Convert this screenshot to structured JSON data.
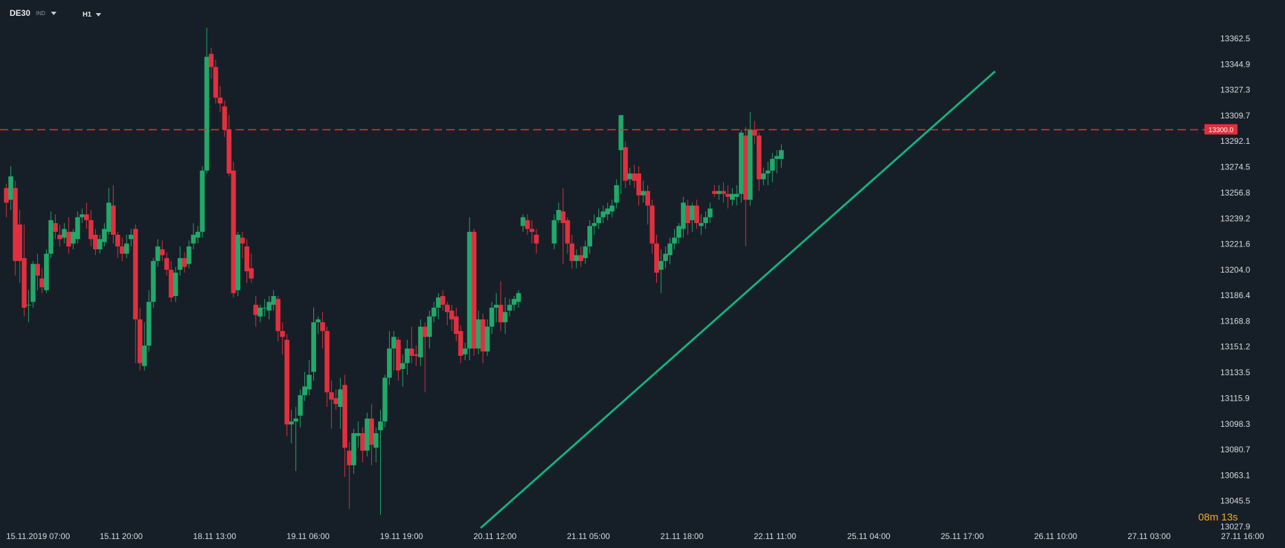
{
  "header": {
    "symbol": "DE30",
    "symbol_tag": "IND",
    "timeframe": "H1"
  },
  "countdown": {
    "minutes": "08",
    "minutes_unit": "m",
    "seconds": "13",
    "seconds_unit": "s"
  },
  "colors": {
    "background": "#161f27",
    "bull": "#22a86a",
    "bear": "#e0303f",
    "trendline": "#13b27e",
    "price_line": "#e0303f",
    "axis_text": "#d5dbe1"
  },
  "chart_data": {
    "type": "candlestick",
    "title": "",
    "xlabel": "",
    "ylabel": "",
    "ylim": [
      13023,
      13380
    ],
    "y_ticks": [
      "13362.5",
      "13344.9",
      "13327.3",
      "13309.7",
      "13292.1",
      "13274.5",
      "13256.8",
      "13239.2",
      "13221.6",
      "13204.0",
      "13186.4",
      "13168.8",
      "13151.2",
      "13133.5",
      "13115.9",
      "13098.3",
      "13080.7",
      "13063.1",
      "13045.5",
      "13027.9"
    ],
    "x_ticks": [
      "15.11.2019  07:00",
      "15.11  20:00",
      "18.11  13:00",
      "19.11  06:00",
      "19.11  19:00",
      "20.11  12:00",
      "21.11  05:00",
      "21.11  18:00",
      "22.11  11:00",
      "25.11  04:00",
      "25.11  17:00",
      "26.11  10:00",
      "27.11  03:00",
      "27.11  16:00"
    ],
    "price_line": {
      "value": "13300.0",
      "level": 13300.0
    },
    "trendline": {
      "from": {
        "bar": 106.5,
        "price": 13027.0
      },
      "to": {
        "bar": 222,
        "price": 13340.0
      }
    },
    "bar_spacing_index_count": 231,
    "candles": [
      [
        13260,
        13250,
        13263,
        13240
      ],
      [
        13252,
        13268,
        13275,
        13245
      ],
      [
        13260,
        13210,
        13265,
        13200
      ],
      [
        13235,
        13210,
        13245,
        13195
      ],
      [
        13212,
        13178,
        13235,
        13172
      ],
      [
        13180,
        13180,
        13190,
        13168
      ],
      [
        13182,
        13208,
        13210,
        13178
      ],
      [
        13208,
        13200,
        13215,
        13190
      ],
      [
        13198,
        13192,
        13205,
        13188
      ],
      [
        13190,
        13215,
        13218,
        13188
      ],
      [
        13215,
        13238,
        13244,
        13212
      ],
      [
        13236,
        13230,
        13242,
        13225
      ],
      [
        13228,
        13225,
        13235,
        13220
      ],
      [
        13226,
        13232,
        13236,
        13222
      ],
      [
        13230,
        13220,
        13240,
        13215
      ],
      [
        13222,
        13230,
        13232,
        13218
      ],
      [
        13225,
        13240,
        13244,
        13222
      ],
      [
        13240,
        13242,
        13246,
        13236
      ],
      [
        13242,
        13238,
        13250,
        13232
      ],
      [
        13238,
        13225,
        13245,
        13220
      ],
      [
        13228,
        13218,
        13232,
        13214
      ],
      [
        13218,
        13225,
        13228,
        13215
      ],
      [
        13223,
        13232,
        13236,
        13220
      ],
      [
        13230,
        13250,
        13260,
        13228
      ],
      [
        13248,
        13228,
        13262,
        13222
      ],
      [
        13228,
        13220,
        13230,
        13212
      ],
      [
        13220,
        13215,
        13226,
        13210
      ],
      [
        13215,
        13222,
        13228,
        13212
      ],
      [
        13225,
        13228,
        13232,
        13220
      ],
      [
        13232,
        13170,
        13235,
        13140
      ],
      [
        13170,
        13140,
        13178,
        13135
      ],
      [
        13138,
        13152,
        13168,
        13135
      ],
      [
        13152,
        13182,
        13190,
        13148
      ],
      [
        13182,
        13210,
        13212,
        13178
      ],
      [
        13210,
        13220,
        13225,
        13206
      ],
      [
        13218,
        13214,
        13224,
        13210
      ],
      [
        13212,
        13204,
        13216,
        13200
      ],
      [
        13204,
        13185,
        13210,
        13182
      ],
      [
        13186,
        13202,
        13206,
        13182
      ],
      [
        13204,
        13212,
        13220,
        13200
      ],
      [
        13212,
        13206,
        13216,
        13202
      ],
      [
        13208,
        13220,
        13224,
        13205
      ],
      [
        13222,
        13228,
        13236,
        13218
      ],
      [
        13226,
        13230,
        13234,
        13222
      ],
      [
        13230,
        13272,
        13275,
        13226
      ],
      [
        13272,
        13350,
        13370,
        13270
      ],
      [
        13352,
        13343,
        13356,
        13335
      ],
      [
        13343,
        13322,
        13348,
        13318
      ],
      [
        13322,
        13318,
        13330,
        13312
      ],
      [
        13316,
        13300,
        13320,
        13295
      ],
      [
        13300,
        13270,
        13310,
        13268
      ],
      [
        13272,
        13188,
        13278,
        13185
      ],
      [
        13190,
        13228,
        13230,
        13186
      ],
      [
        13226,
        13222,
        13230,
        13212
      ],
      [
        13220,
        13203,
        13225,
        13195
      ],
      [
        13205,
        13198,
        13215,
        13195
      ],
      [
        13180,
        13173,
        13186,
        13165
      ],
      [
        13172,
        13178,
        13180,
        13168
      ],
      [
        13178,
        13178,
        13184,
        13172
      ],
      [
        13176,
        13182,
        13186,
        13170
      ],
      [
        13180,
        13186,
        13190,
        13176
      ],
      [
        13184,
        13162,
        13186,
        13155
      ],
      [
        13162,
        13158,
        13168,
        13146
      ],
      [
        13156,
        13098,
        13160,
        13090
      ],
      [
        13098,
        13100,
        13108,
        13085
      ],
      [
        13100,
        13102,
        13110,
        13066
      ],
      [
        13104,
        13118,
        13122,
        13096
      ],
      [
        13118,
        13124,
        13134,
        13114
      ],
      [
        13122,
        13132,
        13142,
        13118
      ],
      [
        13134,
        13168,
        13178,
        13128
      ],
      [
        13168,
        13170,
        13172,
        13160
      ],
      [
        13168,
        13162,
        13175,
        13150
      ],
      [
        13162,
        13120,
        13165,
        13110
      ],
      [
        13120,
        13115,
        13128,
        13095
      ],
      [
        13116,
        13112,
        13122,
        13108
      ],
      [
        13110,
        13122,
        13130,
        13095
      ],
      [
        13125,
        13082,
        13132,
        13062
      ],
      [
        13080,
        13070,
        13086,
        13040
      ],
      [
        13070,
        13092,
        13095,
        13064
      ],
      [
        13090,
        13092,
        13100,
        13082
      ],
      [
        13092,
        13080,
        13096,
        13072
      ],
      [
        13080,
        13102,
        13106,
        13076
      ],
      [
        13102,
        13084,
        13112,
        13070
      ],
      [
        13082,
        13092,
        13096,
        13072
      ],
      [
        13094,
        13100,
        13108,
        13036
      ],
      [
        13100,
        13130,
        13132,
        13096
      ],
      [
        13130,
        13150,
        13162,
        13125
      ],
      [
        13150,
        13158,
        13162,
        13135
      ],
      [
        13156,
        13135,
        13158,
        13128
      ],
      [
        13136,
        13140,
        13146,
        13124
      ],
      [
        13140,
        13150,
        13156,
        13132
      ],
      [
        13150,
        13145,
        13165,
        13140
      ],
      [
        13146,
        13145,
        13152,
        13138
      ],
      [
        13144,
        13165,
        13170,
        13138
      ],
      [
        13165,
        13158,
        13168,
        13120
      ],
      [
        13158,
        13172,
        13176,
        13150
      ],
      [
        13172,
        13178,
        13182,
        13168
      ],
      [
        13178,
        13185,
        13188,
        13170
      ],
      [
        13186,
        13180,
        13190,
        13176
      ],
      [
        13180,
        13175,
        13182,
        13166
      ],
      [
        13176,
        13170,
        13180,
        13162
      ],
      [
        13172,
        13160,
        13178,
        13155
      ],
      [
        13162,
        13145,
        13166,
        13140
      ],
      [
        13146,
        13150,
        13154,
        13142
      ],
      [
        13150,
        13230,
        13240,
        13142
      ],
      [
        13230,
        13150,
        13232,
        13145
      ],
      [
        13150,
        13170,
        13176,
        13146
      ],
      [
        13170,
        13148,
        13174,
        13140
      ],
      [
        13148,
        13165,
        13170,
        13145
      ],
      [
        13165,
        13178,
        13182,
        13160
      ],
      [
        13178,
        13180,
        13188,
        13168
      ],
      [
        13180,
        13168,
        13196,
        13162
      ],
      [
        13168,
        13175,
        13185,
        13160
      ],
      [
        13176,
        13180,
        13184,
        13172
      ],
      [
        13180,
        13184,
        13186,
        13176
      ],
      [
        13182,
        13188,
        13190,
        13178
      ],
      [
        13234,
        13240,
        13242,
        13230
      ],
      [
        13238,
        13232,
        13242,
        13228
      ],
      [
        13232,
        13230,
        13238,
        13222
      ],
      [
        13228,
        13222,
        13232,
        13215
      ],
      [
        13222,
        13238,
        13242,
        13218
      ],
      [
        13238,
        13245,
        13250,
        13236
      ],
      [
        13244,
        13236,
        13260,
        13208
      ],
      [
        13238,
        13222,
        13240,
        13215
      ],
      [
        13222,
        13210,
        13228,
        13205
      ],
      [
        13210,
        13214,
        13218,
        13205
      ],
      [
        13214,
        13210,
        13220,
        13206
      ],
      [
        13212,
        13220,
        13224,
        13208
      ],
      [
        13220,
        13234,
        13238,
        13215
      ],
      [
        13234,
        13236,
        13242,
        13228
      ],
      [
        13236,
        13240,
        13246,
        13232
      ],
      [
        13240,
        13244,
        13248,
        13236
      ],
      [
        13242,
        13246,
        13250,
        13238
      ],
      [
        13244,
        13248,
        13252,
        13240
      ],
      [
        13250,
        13262,
        13266,
        13246
      ],
      [
        13286,
        13310,
        13310,
        13256
      ],
      [
        13288,
        13265,
        13292,
        13260
      ],
      [
        13266,
        13270,
        13274,
        13262
      ],
      [
        13270,
        13265,
        13276,
        13260
      ],
      [
        13270,
        13255,
        13275,
        13248
      ],
      [
        13255,
        13258,
        13265,
        13250
      ],
      [
        13258,
        13248,
        13262,
        13235
      ],
      [
        13248,
        13222,
        13252,
        13215
      ],
      [
        13222,
        13202,
        13228,
        13195
      ],
      [
        13204,
        13210,
        13218,
        13188
      ],
      [
        13210,
        13215,
        13220,
        13205
      ],
      [
        13214,
        13222,
        13226,
        13208
      ],
      [
        13222,
        13226,
        13232,
        13218
      ],
      [
        13226,
        13234,
        13236,
        13222
      ],
      [
        13232,
        13250,
        13254,
        13226
      ],
      [
        13248,
        13236,
        13252,
        13228
      ],
      [
        13238,
        13248,
        13250,
        13230
      ],
      [
        13248,
        13236,
        13252,
        13232
      ],
      [
        13234,
        13236,
        13242,
        13228
      ],
      [
        13236,
        13240,
        13244,
        13232
      ],
      [
        13240,
        13246,
        13250,
        13236
      ],
      [
        13258,
        13256,
        13262,
        13254
      ],
      [
        13256,
        13258,
        13262,
        13252
      ],
      [
        13258,
        13256,
        13264,
        13250
      ],
      [
        13256,
        13254,
        13262,
        13246
      ],
      [
        13252,
        13256,
        13260,
        13248
      ],
      [
        13254,
        13256,
        13262,
        13248
      ],
      [
        13256,
        13298,
        13300,
        13250
      ],
      [
        13296,
        13252,
        13302,
        13220
      ],
      [
        13252,
        13300,
        13312,
        13248
      ],
      [
        13300,
        13296,
        13306,
        13290
      ],
      [
        13296,
        13266,
        13298,
        13258
      ],
      [
        13266,
        13270,
        13274,
        13262
      ],
      [
        13270,
        13272,
        13278,
        13262
      ],
      [
        13272,
        13280,
        13284,
        13264
      ],
      [
        13280,
        13282,
        13286,
        13270
      ],
      [
        13280,
        13286,
        13290,
        13274
      ]
    ]
  }
}
